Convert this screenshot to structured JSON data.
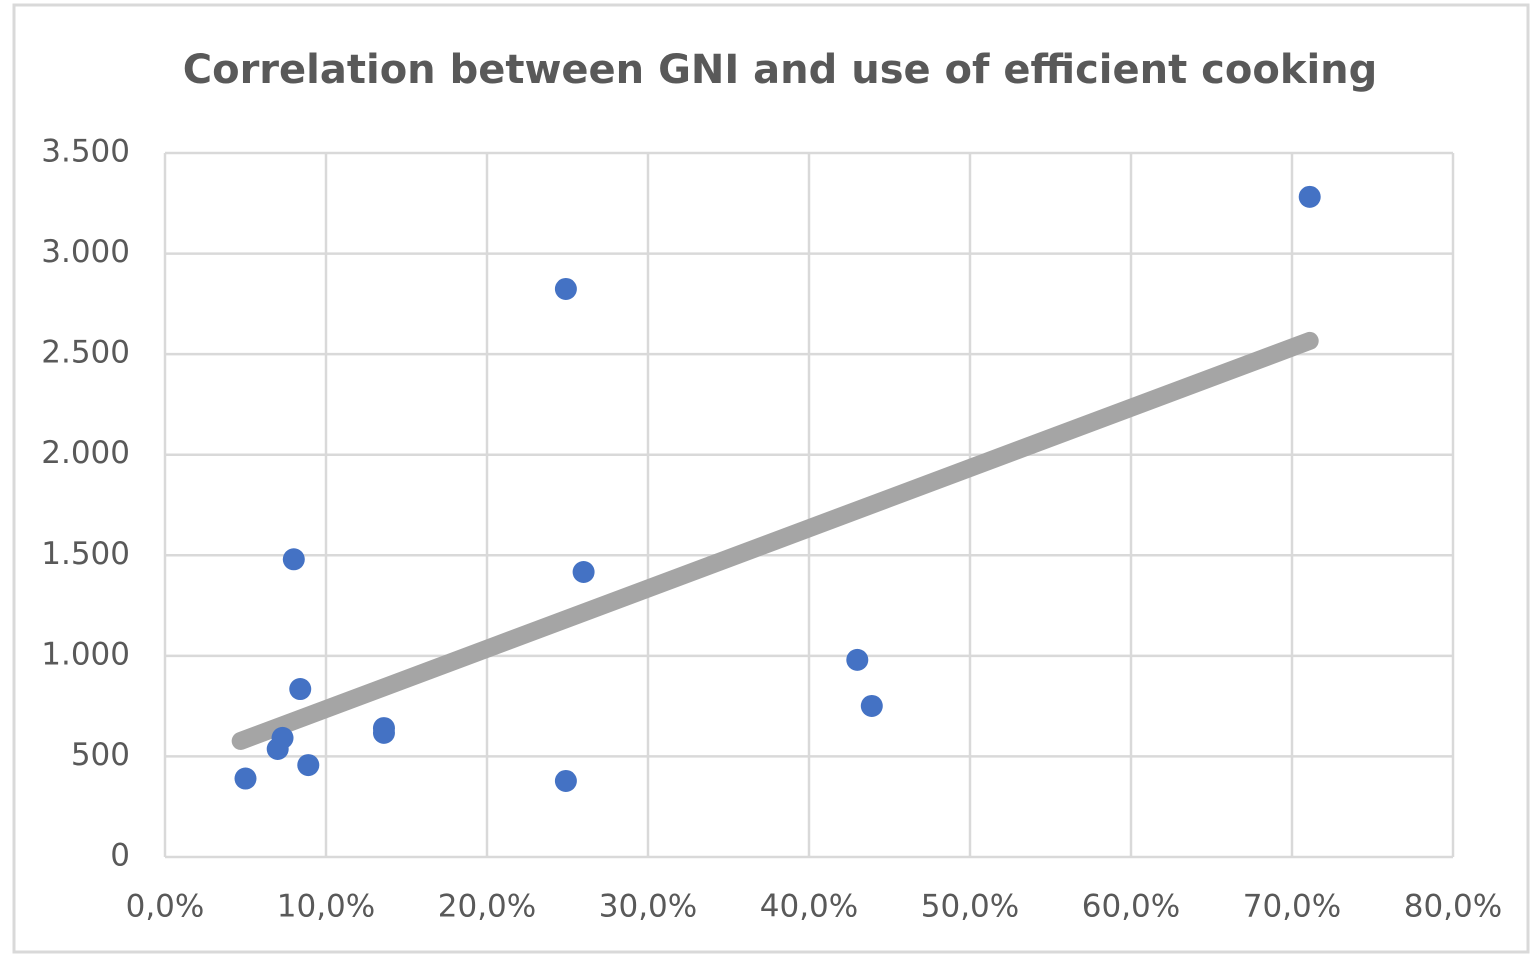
{
  "chart_data": {
    "type": "scatter",
    "title": "Correlation between GNI and use of efficient cooking",
    "x": [
      5.0,
      8.0,
      8.4,
      7.3,
      7.0,
      8.9,
      13.6,
      13.6,
      24.9,
      26.0,
      24.9,
      43.0,
      43.9,
      71.1
    ],
    "values": [
      390,
      1480,
      835,
      592,
      537,
      457,
      641,
      617,
      2824,
      1417,
      378,
      980,
      751,
      3282
    ],
    "color": "#4472c4",
    "trendline": {
      "x": [
        4.7,
        71.1
      ],
      "values": [
        577,
        2566
      ],
      "color": "#a5a5a5"
    },
    "xlim": [
      0,
      80
    ],
    "xticks": [
      {
        "value": 0,
        "label": "0,0%"
      },
      {
        "value": 10,
        "label": "10,0%"
      },
      {
        "value": 20,
        "label": "20,0%"
      },
      {
        "value": 30,
        "label": "30,0%"
      },
      {
        "value": 40,
        "label": "40,0%"
      },
      {
        "value": 50,
        "label": "50,0%"
      },
      {
        "value": 60,
        "label": "60,0%"
      },
      {
        "value": 70,
        "label": "70,0%"
      },
      {
        "value": 80,
        "label": "80,0%"
      }
    ],
    "ylim": [
      0,
      3500
    ],
    "yticks": [
      0,
      500,
      {
        "value": 1000,
        "label": "1.000"
      },
      {
        "value": 1500,
        "label": "1.500"
      },
      {
        "value": 2000,
        "label": "2.000"
      },
      {
        "value": 2500,
        "label": "2.500"
      },
      {
        "value": 3000,
        "label": "3.000"
      },
      {
        "value": 3500,
        "label": "3.500"
      }
    ],
    "grid": true
  }
}
